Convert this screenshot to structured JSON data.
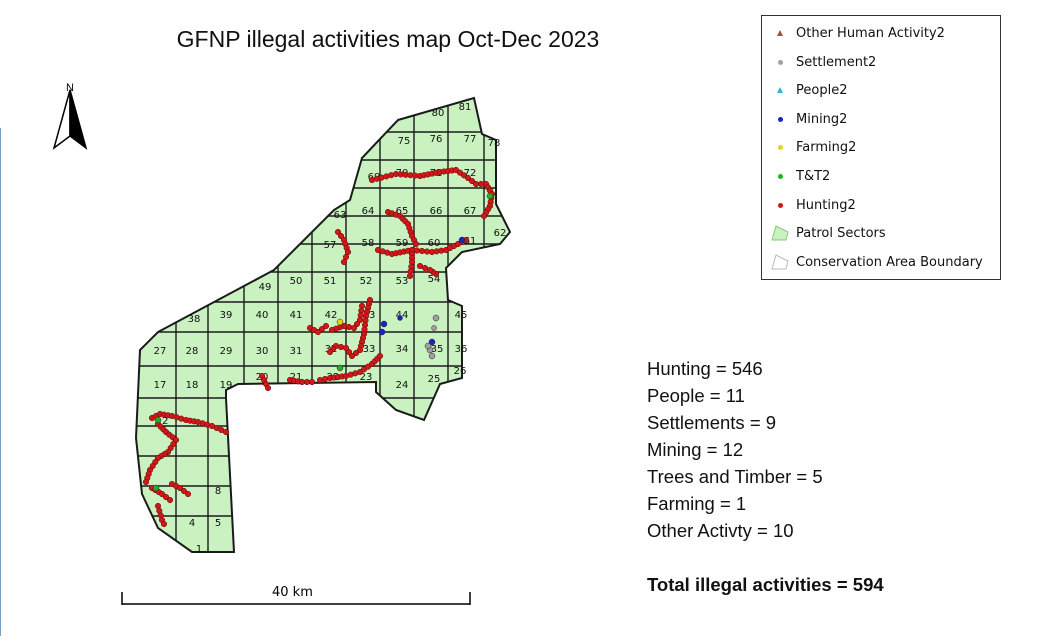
{
  "title": "GFNP illegal activities map Oct-Dec 2023",
  "north_label": "N",
  "scale_label": "40 km",
  "legend": {
    "items": [
      {
        "label": "Other Human Activity2",
        "symbol": "triangle",
        "color": "#a0522d"
      },
      {
        "label": "Settlement2",
        "symbol": "dot",
        "color": "#a0a0a0"
      },
      {
        "label": "People2",
        "symbol": "triangle",
        "color": "#29b6d8"
      },
      {
        "label": "Mining2",
        "symbol": "dot",
        "color": "#1a22c8"
      },
      {
        "label": "Farming2",
        "symbol": "dot",
        "color": "#e8d21a"
      },
      {
        "label": "T&T2",
        "symbol": "dot",
        "color": "#22b022"
      },
      {
        "label": "Hunting2",
        "symbol": "dot",
        "color": "#d01818"
      },
      {
        "label": "Patrol Sectors",
        "symbol": "polygon",
        "color": "#c9f2c0"
      },
      {
        "label": "Conservation Area Boundary",
        "symbol": "outline",
        "color": "#ffffff"
      }
    ]
  },
  "stats": {
    "hunting": "Hunting = 546",
    "people": "People = 11",
    "settlements": "Settlements = 9",
    "mining": "Mining = 12",
    "trees": "Trees and Timber = 5",
    "farming": "Farming = 1",
    "other": "Other Activty = 10",
    "total": "Total illegal activities = 594"
  },
  "sectors": [
    "1",
    "4",
    "5",
    "8",
    "12",
    "17",
    "18",
    "19",
    "20",
    "21",
    "22",
    "23",
    "24",
    "25",
    "26",
    "27",
    "28",
    "29",
    "30",
    "31",
    "32",
    "33",
    "34",
    "35",
    "36",
    "38",
    "39",
    "40",
    "41",
    "42",
    "43",
    "44",
    "45",
    "49",
    "50",
    "51",
    "52",
    "53",
    "54",
    "57",
    "58",
    "59",
    "60",
    "61",
    "62",
    "63",
    "64",
    "65",
    "66",
    "67",
    "69",
    "70",
    "71",
    "72",
    "75",
    "76",
    "77",
    "78",
    "80",
    "81"
  ]
}
